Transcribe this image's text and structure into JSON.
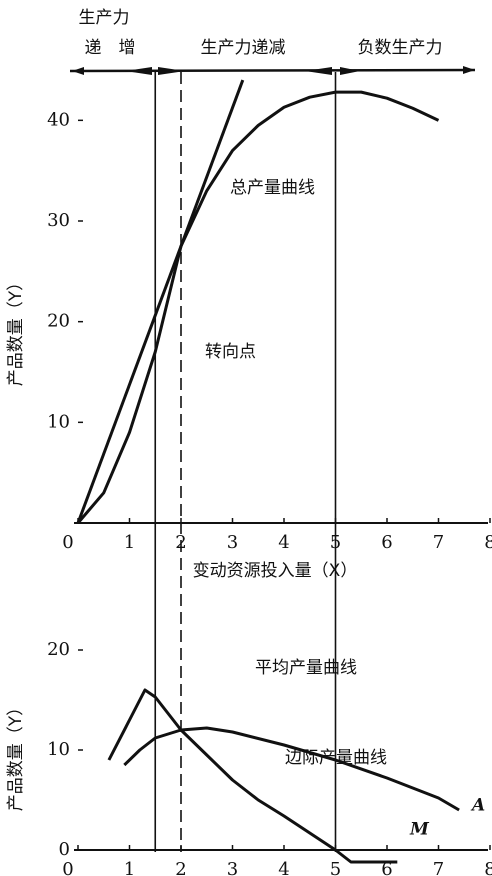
{
  "chart_data": [
    {
      "type": "line",
      "stage_labels": [
        "生产力",
        "递　增",
        "生产力递减",
        "负数生产力"
      ],
      "xlabel": "变动资源投入量（X）",
      "ylabel": "产品数量（Y）",
      "xlim": [
        0,
        8
      ],
      "ylim": [
        0,
        45
      ],
      "xticks": [
        0,
        1,
        2,
        3,
        4,
        5,
        6,
        7,
        8
      ],
      "yticks": [
        10,
        20,
        30,
        40
      ],
      "vlines": [
        1.5,
        2,
        5
      ],
      "annotations": [
        "转向点"
      ],
      "series": [
        {
          "name": "总产量曲线",
          "color": "#111111",
          "x": [
            0,
            0.5,
            1,
            1.5,
            2,
            2.5,
            3,
            3.5,
            4,
            4.5,
            5,
            5.5,
            6,
            6.5,
            7
          ],
          "values": [
            0,
            3,
            9,
            17,
            27.5,
            33,
            37,
            39.5,
            41.3,
            42.3,
            42.8,
            42.8,
            42.2,
            41.2,
            40
          ]
        },
        {
          "name": null,
          "color": "#111111",
          "x": [
            0,
            3.2
          ],
          "values": [
            0,
            44
          ]
        }
      ]
    },
    {
      "type": "line",
      "ylabel": "产品数量（Y）",
      "xlim": [
        0,
        8
      ],
      "ylim": [
        -2,
        20
      ],
      "xticks": [
        0,
        1,
        2,
        3,
        4,
        5,
        6,
        7,
        8
      ],
      "yticks": [
        0,
        10,
        20
      ],
      "series": [
        {
          "name": "平均产量曲线",
          "label": "A",
          "color": "#111111",
          "x": [
            0.9,
            1.2,
            1.5,
            2,
            2.5,
            3,
            4,
            5,
            6,
            7,
            7.4
          ],
          "values": [
            8.5,
            10,
            11.2,
            12,
            12.2,
            11.8,
            10.5,
            9,
            7.2,
            5.2,
            4
          ]
        },
        {
          "name": "边际产量曲线",
          "label": "M",
          "color": "#111111",
          "x": [
            0.6,
            1,
            1.3,
            1.5,
            2,
            2.5,
            3,
            3.5,
            4,
            4.5,
            5,
            5.3,
            6.2
          ],
          "values": [
            9,
            13,
            16,
            15.3,
            12,
            9.5,
            7,
            5,
            3.4,
            1.7,
            0,
            -1.2,
            -1.2
          ]
        }
      ]
    }
  ]
}
